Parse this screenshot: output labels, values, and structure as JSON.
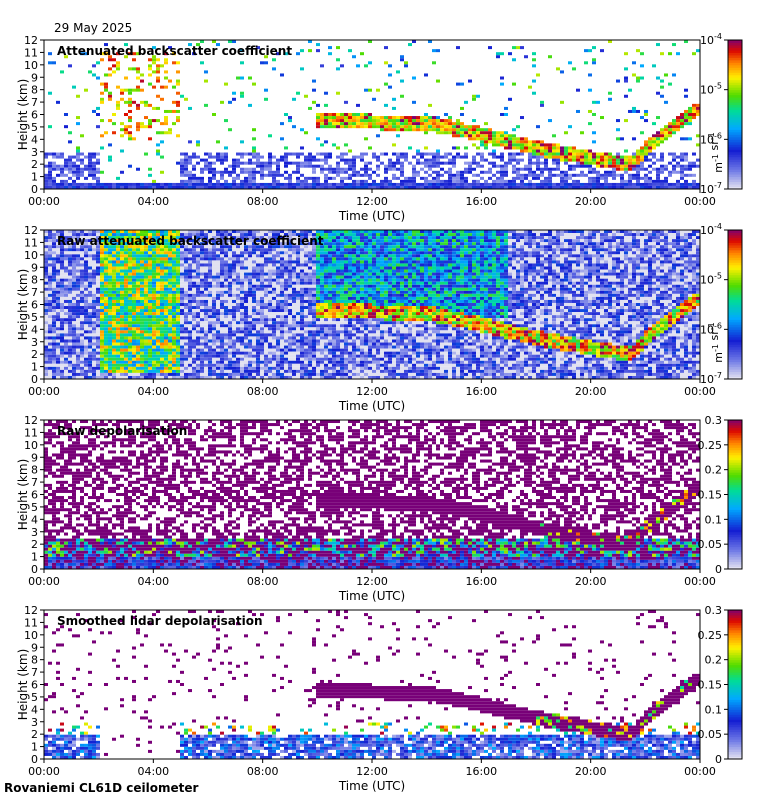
{
  "date": "29 May 2025",
  "footer": "Rovaniemi CL61D ceilometer",
  "chart_data": [
    {
      "type": "heatmap",
      "title": "Attenuated backscatter coefficient",
      "xlabel": "Time (UTC)",
      "ylabel": "Height (km)",
      "xticks": [
        "00:00",
        "04:00",
        "08:00",
        "12:00",
        "16:00",
        "20:00",
        "00:00"
      ],
      "yticks": [
        0,
        1,
        2,
        3,
        4,
        5,
        6,
        7,
        8,
        9,
        10,
        11,
        12
      ],
      "ylim": [
        0,
        12
      ],
      "xlim_hours": [
        0,
        24
      ],
      "colorbar": {
        "scale": "log",
        "label": "m-1 sr-1",
        "ticks": [
          "10-7",
          "10-6",
          "10-5",
          "10-4"
        ],
        "range": [
          1e-07,
          0.0001
        ]
      },
      "cloud_layer_top_km": [
        {
          "time_h": 10.0,
          "height_km": 6.1
        },
        {
          "time_h": 12.0,
          "height_km": 6.0
        },
        {
          "time_h": 14.0,
          "height_km": 5.9
        },
        {
          "time_h": 16.0,
          "height_km": 5.0
        },
        {
          "time_h": 18.0,
          "height_km": 3.9
        },
        {
          "time_h": 20.0,
          "height_km": 3.1
        },
        {
          "time_h": 21.5,
          "height_km": 2.6
        },
        {
          "time_h": 22.0,
          "height_km": 3.8
        },
        {
          "time_h": 24.0,
          "height_km": 7.1
        }
      ]
    },
    {
      "type": "heatmap",
      "title": "Raw attenuated backscatter coefficient",
      "xlabel": "Time (UTC)",
      "ylabel": "Height (km)",
      "xticks": [
        "00:00",
        "04:00",
        "08:00",
        "12:00",
        "16:00",
        "20:00",
        "00:00"
      ],
      "yticks": [
        0,
        1,
        2,
        3,
        4,
        5,
        6,
        7,
        8,
        9,
        10,
        11,
        12
      ],
      "ylim": [
        0,
        12
      ],
      "colorbar": {
        "scale": "log",
        "label": "m-1 sr-1",
        "ticks": [
          "10-7",
          "10-6",
          "10-5",
          "10-4"
        ],
        "range": [
          1e-07,
          0.0001
        ]
      }
    },
    {
      "type": "heatmap",
      "title": "Raw depolarisation",
      "xlabel": "Time (UTC)",
      "ylabel": "Height (km)",
      "xticks": [
        "00:00",
        "04:00",
        "08:00",
        "12:00",
        "16:00",
        "20:00",
        "00:00"
      ],
      "yticks": [
        0,
        1,
        2,
        3,
        4,
        5,
        6,
        7,
        8,
        9,
        10,
        11,
        12
      ],
      "ylim": [
        0,
        12
      ],
      "colorbar": {
        "scale": "linear",
        "ticks": [
          "0",
          "0.05",
          "0.1",
          "0.15",
          "0.2",
          "0.25",
          "0.3"
        ],
        "range": [
          0,
          0.3
        ]
      }
    },
    {
      "type": "heatmap",
      "title": "Smoothed lidar depolarisation",
      "xlabel": "Time (UTC)",
      "ylabel": "Height (km)",
      "xticks": [
        "00:00",
        "04:00",
        "08:00",
        "12:00",
        "16:00",
        "20:00",
        "00:00"
      ],
      "yticks": [
        0,
        1,
        2,
        3,
        4,
        5,
        6,
        7,
        8,
        9,
        10,
        11,
        12
      ],
      "ylim": [
        0,
        12
      ],
      "colorbar": {
        "scale": "linear",
        "ticks": [
          "0",
          "0.05",
          "0.1",
          "0.15",
          "0.2",
          "0.25",
          "0.3"
        ],
        "range": [
          0,
          0.3
        ]
      }
    }
  ]
}
